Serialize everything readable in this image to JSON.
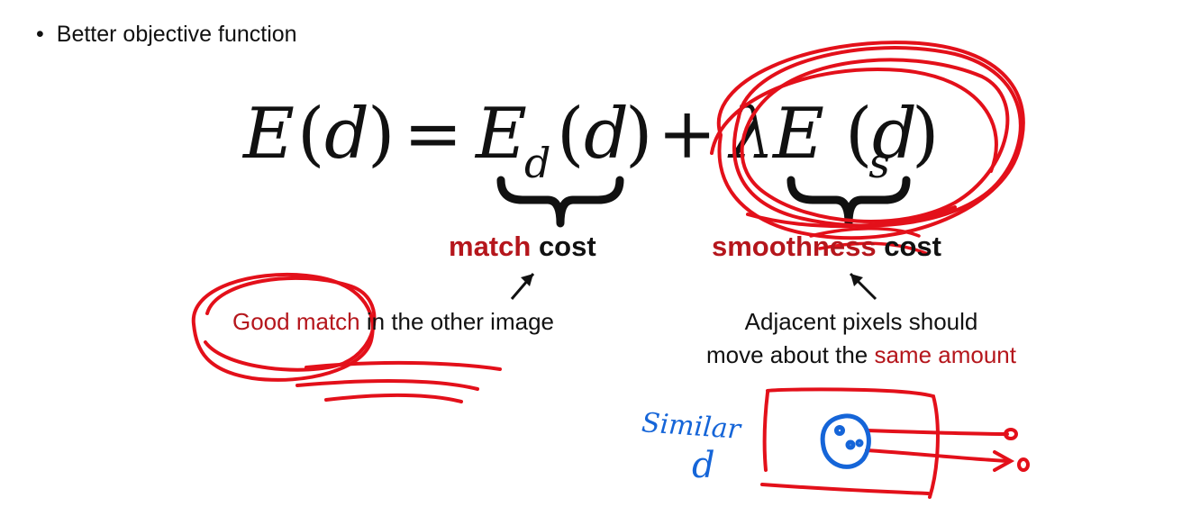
{
  "bullet": {
    "symbol": "•",
    "text": "Better objective function"
  },
  "equation": {
    "E1": "E",
    "paren1": "(",
    "d1": "d",
    "paren1c": ")",
    "eq": "=",
    "E2": "E",
    "sub_d": "d",
    "paren2": "(",
    "d2": "d",
    "paren2c": ")",
    "plus": "+",
    "lambda": "λ",
    "E3": "E",
    "sub_s": "s",
    "paren3": "(",
    "d3": "d",
    "paren3c": ")"
  },
  "match_cost": {
    "word1": "match",
    "word2": "cost"
  },
  "smoothness_cost": {
    "word1": "smoothness",
    "word2": "cost"
  },
  "match_desc": {
    "highlight": "Good match",
    "rest": " in the other image"
  },
  "smooth_desc": {
    "line1": "Adjacent pixels should",
    "line2_prefix": "move about the ",
    "line2_highlight": "same amount"
  },
  "handwriting": {
    "word": "Similar",
    "letter": "d"
  },
  "colors": {
    "text": "#111111",
    "accent_red": "#b5161c",
    "ink_red": "#e3101a",
    "ink_blue": "#1565d8"
  }
}
